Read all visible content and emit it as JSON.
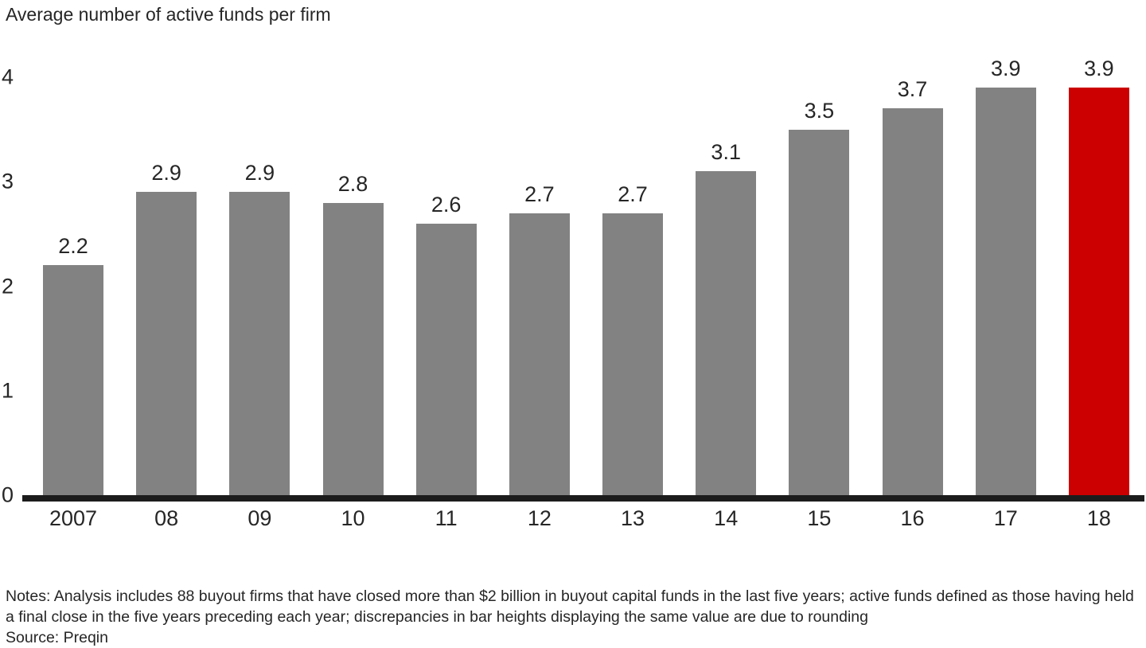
{
  "chart_data": {
    "type": "bar",
    "title": "Average number of active funds per firm",
    "categories": [
      "2007",
      "08",
      "09",
      "10",
      "11",
      "12",
      "13",
      "14",
      "15",
      "16",
      "17",
      "18"
    ],
    "values": [
      2.2,
      2.9,
      2.9,
      2.8,
      2.6,
      2.7,
      2.7,
      3.1,
      3.5,
      3.7,
      3.9,
      3.9
    ],
    "highlight_index": 11,
    "bar_color": "#828282",
    "highlight_color": "#cc0000",
    "axis_color": "#1c1c1c",
    "ylim": [
      0,
      4
    ],
    "yticks": [
      0,
      1,
      2,
      3,
      4
    ],
    "xlabel": "",
    "ylabel": "",
    "grid": false,
    "legend": null
  },
  "footer": {
    "notes": "Notes: Analysis includes 88 buyout firms that have closed more than $2 billion in buyout capital funds in the last five years; active funds defined as those having held a final close in the five years preceding each year; discrepancies in bar heights displaying the same value are due to rounding",
    "source": "Source: Preqin"
  }
}
